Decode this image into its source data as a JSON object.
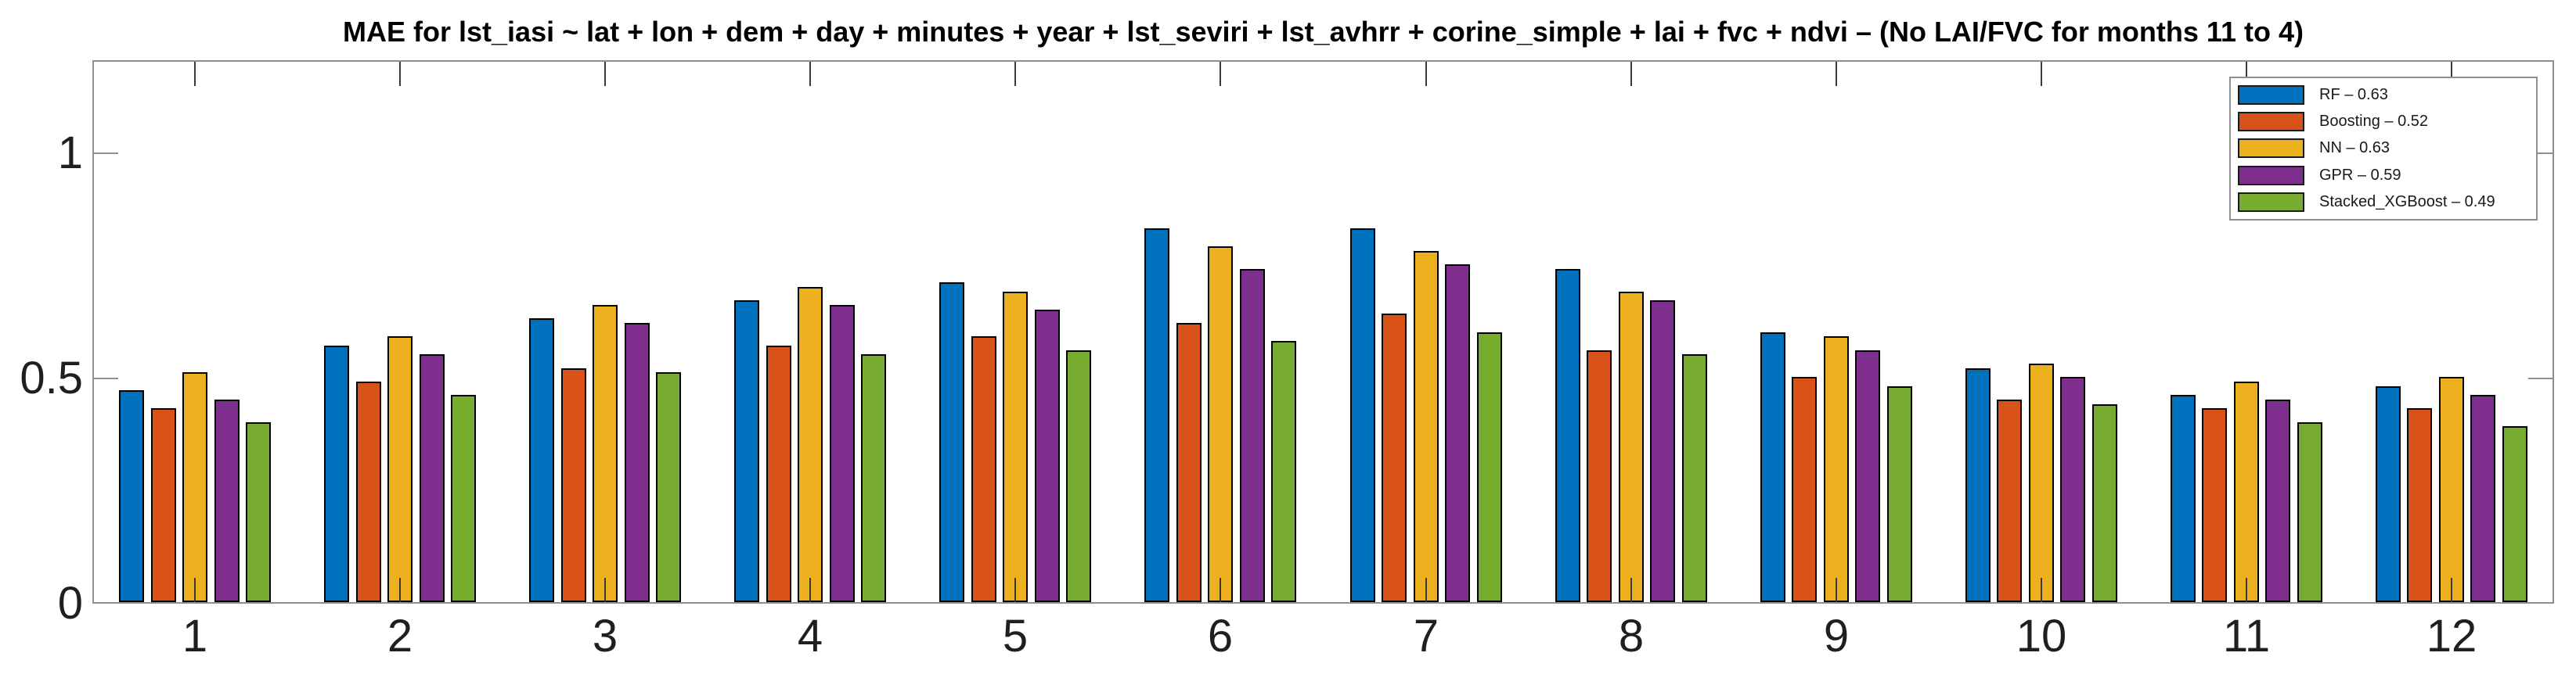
{
  "chart_data": {
    "type": "bar",
    "title": "MAE for lst_iasi ~ lat + lon + dem + day + minutes + year + lst_seviri + lst_avhrr + corine_simple + lai + fvc + ndvi – (No LAI/FVC for months 11 to 4)",
    "categories": [
      "1",
      "2",
      "3",
      "4",
      "5",
      "6",
      "7",
      "8",
      "9",
      "10",
      "11",
      "12"
    ],
    "series": [
      {
        "name": "RF",
        "legend_label": "RF – 0.63",
        "mean": 0.63,
        "color": "#0072BD",
        "values": [
          0.47,
          0.57,
          0.63,
          0.67,
          0.71,
          0.83,
          0.83,
          0.74,
          0.6,
          0.52,
          0.46,
          0.48
        ]
      },
      {
        "name": "Boosting",
        "legend_label": "Boosting – 0.52",
        "mean": 0.52,
        "color": "#D95319",
        "values": [
          0.43,
          0.49,
          0.52,
          0.57,
          0.59,
          0.62,
          0.64,
          0.56,
          0.5,
          0.45,
          0.43,
          0.43
        ]
      },
      {
        "name": "NN",
        "legend_label": "NN – 0.63",
        "mean": 0.63,
        "color": "#EDB120",
        "values": [
          0.51,
          0.59,
          0.66,
          0.7,
          0.69,
          0.79,
          0.78,
          0.69,
          0.59,
          0.53,
          0.49,
          0.5
        ]
      },
      {
        "name": "GPR",
        "legend_label": "GPR – 0.59",
        "mean": 0.59,
        "color": "#7E2F8E",
        "values": [
          0.45,
          0.55,
          0.62,
          0.66,
          0.65,
          0.74,
          0.75,
          0.67,
          0.56,
          0.5,
          0.45,
          0.46
        ]
      },
      {
        "name": "Stacked_XGBoost",
        "legend_label": "Stacked_XGBoost – 0.49",
        "mean": 0.49,
        "color": "#77AC30",
        "values": [
          0.4,
          0.46,
          0.51,
          0.55,
          0.56,
          0.58,
          0.6,
          0.55,
          0.48,
          0.44,
          0.4,
          0.39
        ]
      }
    ],
    "xlabel": "",
    "ylabel": "",
    "yticks": [
      0,
      0.5,
      1
    ],
    "ytick_labels": [
      "0",
      "0.5",
      "1"
    ],
    "ylim": [
      0,
      1.207
    ],
    "grid": false,
    "legend_position": "top-right"
  }
}
